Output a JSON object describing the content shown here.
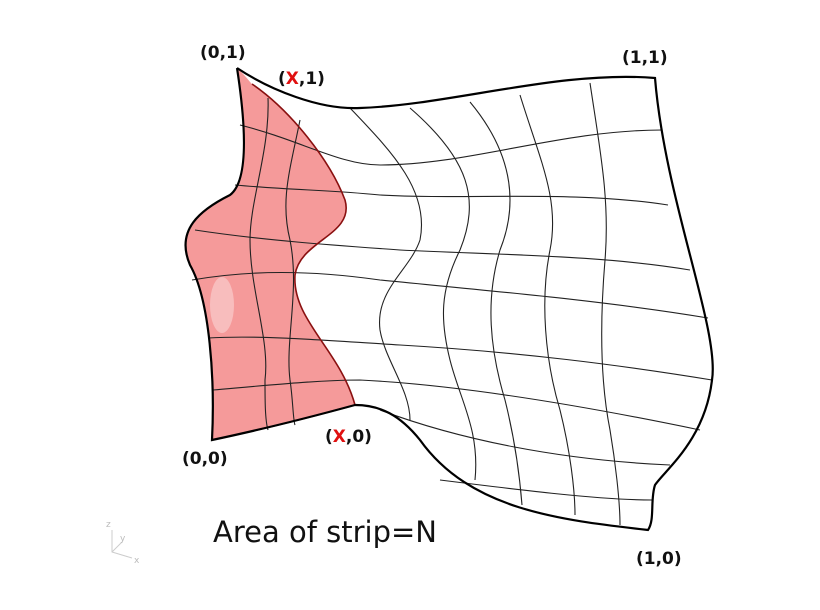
{
  "corners": {
    "top_left": "(0,1)",
    "top_right": "(1,1)",
    "bottom_left": "(0,0)",
    "bottom_right": "(1,0)"
  },
  "strip_top": {
    "open": "(",
    "var": "X",
    "close": ",1)"
  },
  "strip_bottom": {
    "open": "(",
    "var": "X",
    "close": ",0)"
  },
  "caption": "Area of strip=N",
  "axes": {
    "z": "z",
    "y": "y",
    "x": "x"
  }
}
